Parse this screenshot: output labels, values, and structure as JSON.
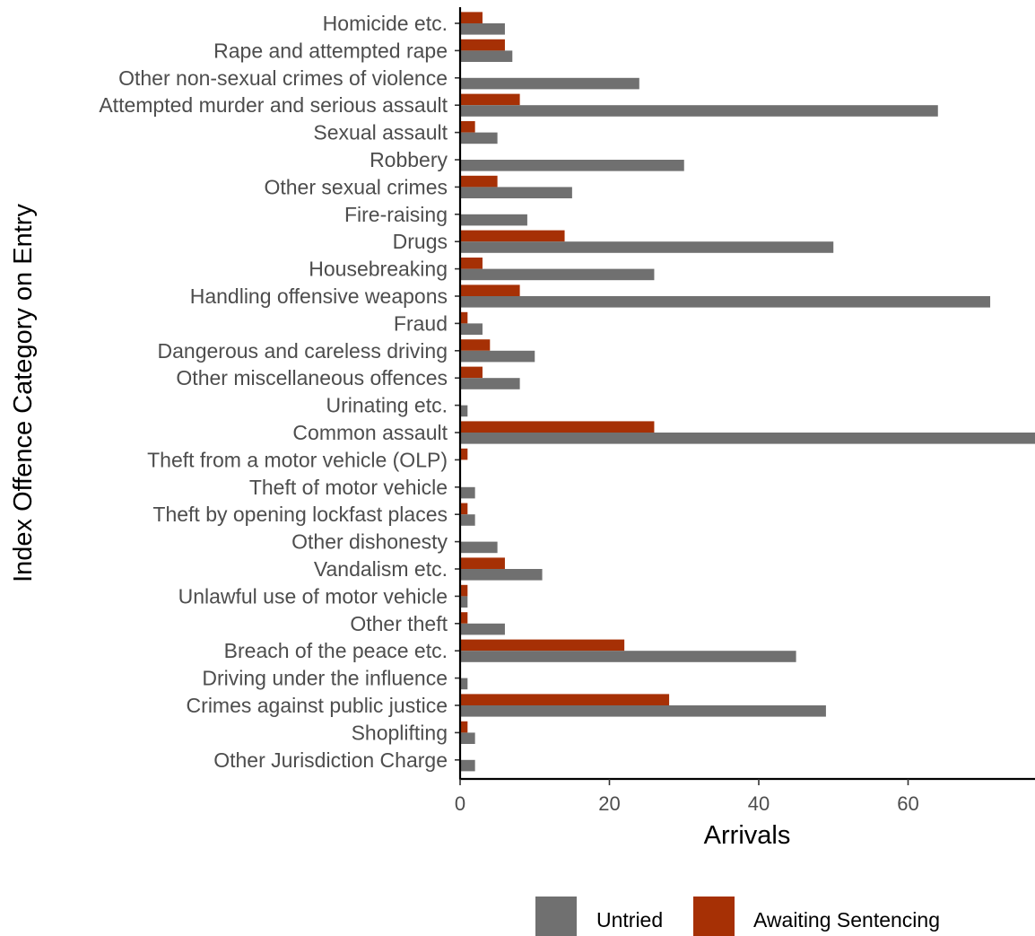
{
  "chart_data": {
    "type": "bar",
    "orientation": "horizontal",
    "title": "",
    "xlabel": "Arrivals",
    "ylabel": "Index Offence Category on Entry",
    "xlim": [
      0,
      77
    ],
    "x_ticks": [
      0,
      20,
      40,
      60
    ],
    "grid": false,
    "legend_position": "bottom",
    "categories": [
      "Homicide etc.",
      "Rape and attempted rape",
      "Other non-sexual crimes of violence",
      "Attempted murder and serious assault",
      "Sexual assault",
      "Robbery",
      "Other sexual crimes",
      "Fire-raising",
      "Drugs",
      "Housebreaking",
      "Handling offensive weapons",
      "Fraud",
      "Dangerous and careless driving",
      "Other miscellaneous offences",
      "Urinating etc.",
      "Common assault",
      "Theft from a motor vehicle (OLP)",
      "Theft of motor vehicle",
      "Theft by opening lockfast places",
      "Other dishonesty",
      "Vandalism etc.",
      "Unlawful use of motor vehicle",
      "Other theft",
      "Breach of the peace etc.",
      "Driving under the influence",
      "Crimes against public justice",
      "Shoplifting",
      "Other Jurisdiction Charge"
    ],
    "series": [
      {
        "name": "Untried",
        "color": "#707070",
        "values": [
          6,
          7,
          24,
          64,
          5,
          30,
          15,
          9,
          50,
          26,
          71,
          3,
          10,
          8,
          1,
          77,
          0,
          2,
          2,
          5,
          11,
          1,
          6,
          45,
          1,
          49,
          2,
          2
        ]
      },
      {
        "name": "Awaiting Sentencing",
        "color": "#a63005",
        "values": [
          3,
          6,
          0,
          8,
          2,
          0,
          5,
          0,
          14,
          3,
          8,
          1,
          4,
          3,
          0,
          26,
          1,
          0,
          1,
          0,
          6,
          1,
          1,
          22,
          0,
          28,
          1,
          0
        ]
      }
    ]
  }
}
